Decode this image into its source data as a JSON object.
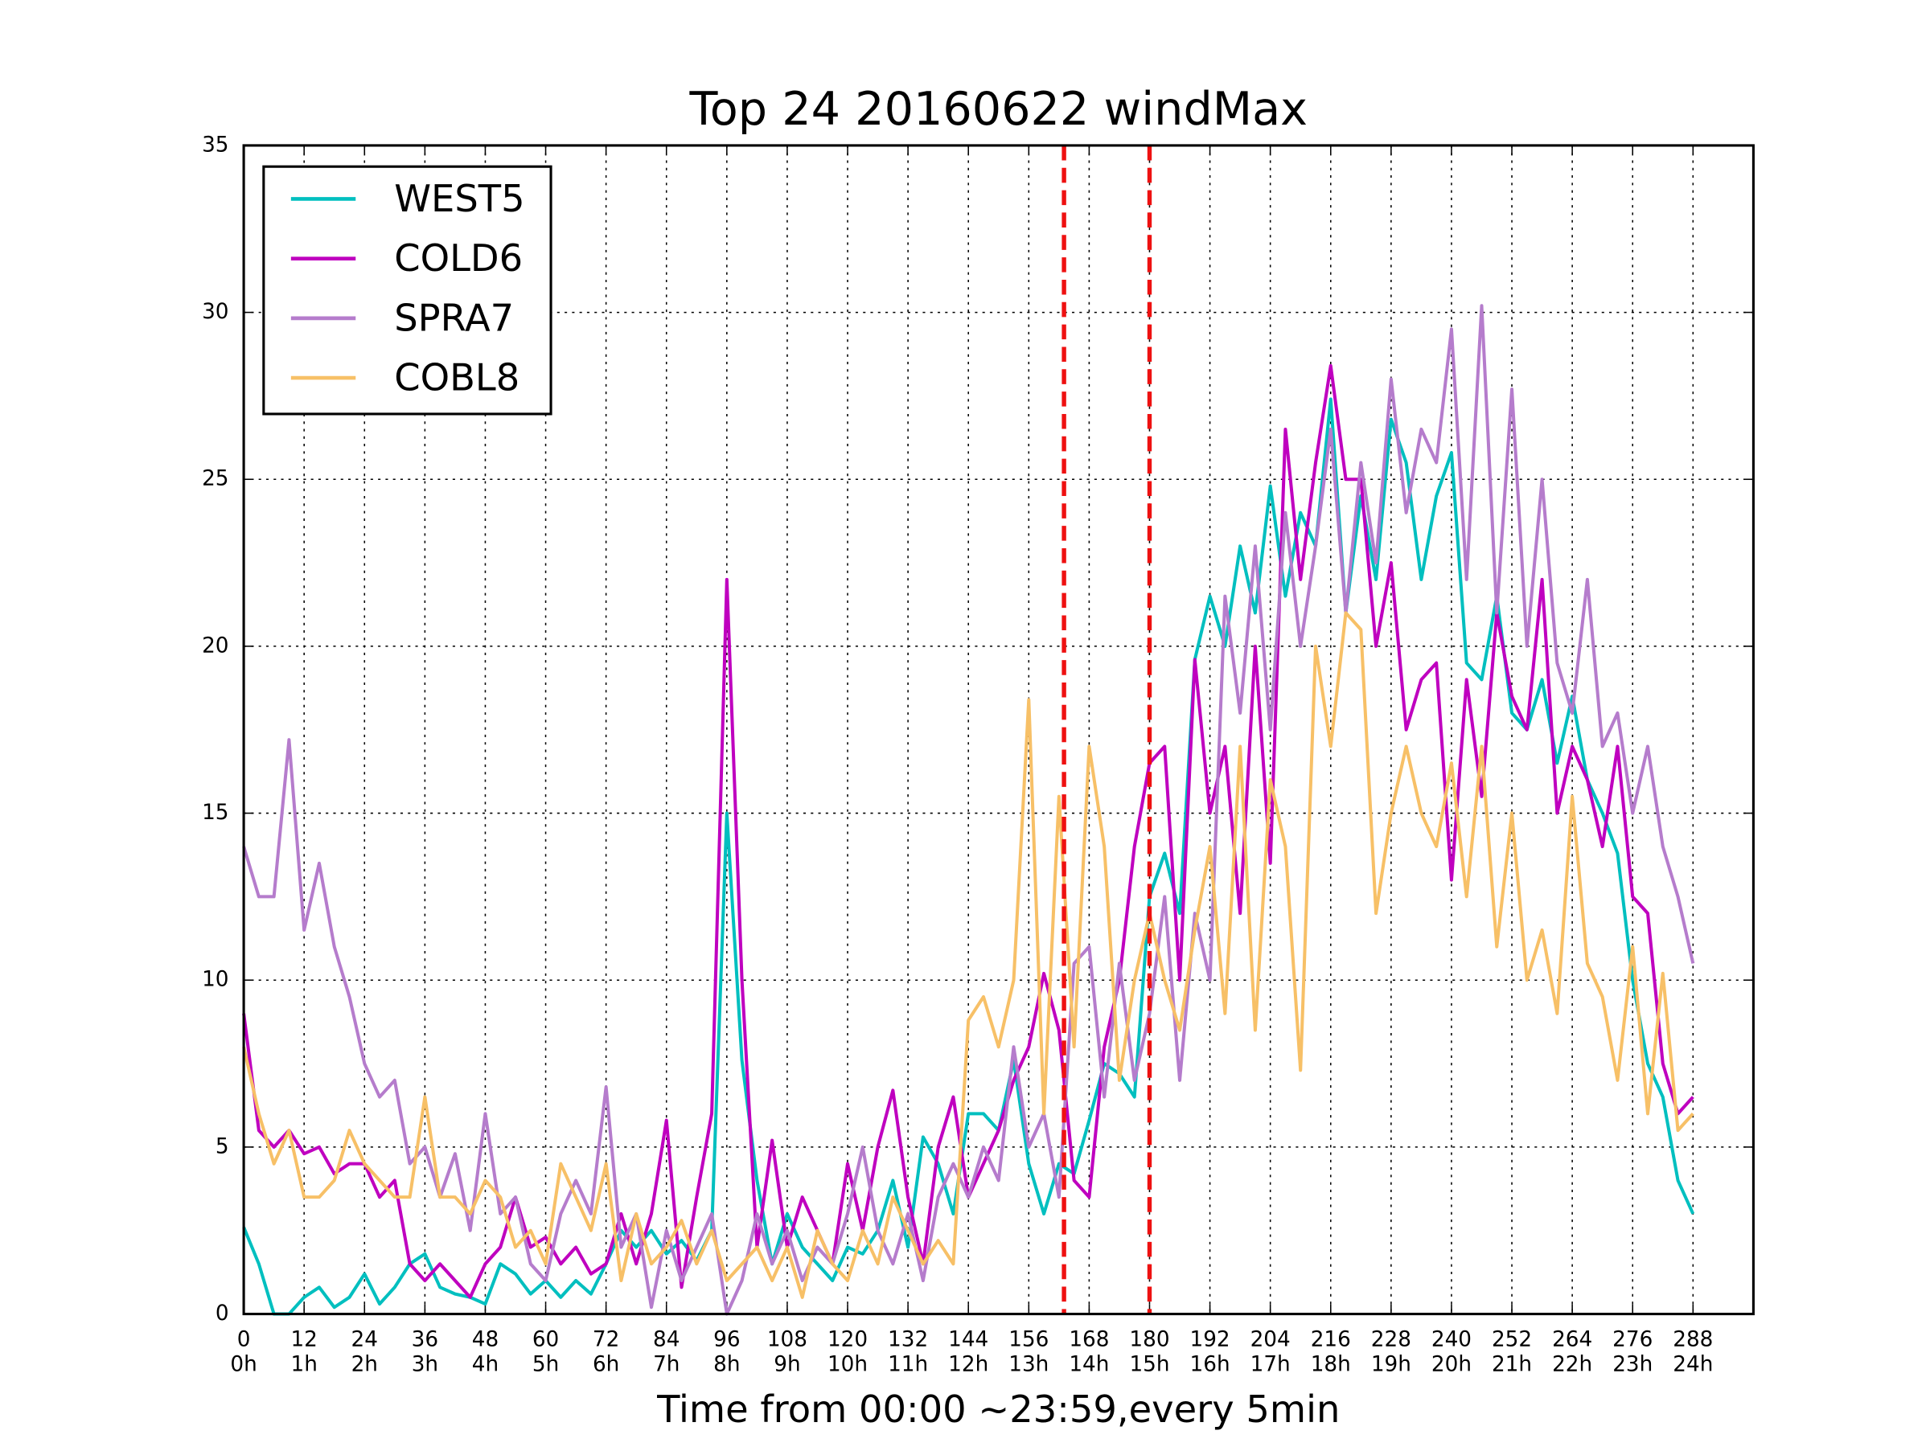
{
  "chart_data": {
    "type": "line",
    "title": "Top 24 20160622 windMax",
    "x_label": "Time from 00:00 ~23:59,every 5min",
    "x": [
      0,
      3,
      6,
      9,
      12,
      15,
      18,
      21,
      24,
      27,
      30,
      33,
      36,
      39,
      42,
      45,
      48,
      51,
      54,
      57,
      60,
      63,
      66,
      69,
      72,
      75,
      78,
      81,
      84,
      87,
      90,
      93,
      96,
      99,
      102,
      105,
      108,
      111,
      114,
      117,
      120,
      123,
      126,
      129,
      132,
      135,
      138,
      141,
      144,
      147,
      150,
      153,
      156,
      159,
      162,
      165,
      168,
      171,
      174,
      177,
      180,
      183,
      186,
      189,
      192,
      195,
      198,
      201,
      204,
      207,
      210,
      213,
      216,
      219,
      222,
      225,
      228,
      231,
      234,
      237,
      240,
      243,
      246,
      249,
      252,
      255,
      258,
      261,
      264,
      267,
      270,
      273,
      276,
      279,
      282,
      285,
      288
    ],
    "series": [
      {
        "name": "WEST5",
        "color": "#00bfbf",
        "values": [
          2.6,
          1.5,
          0,
          0,
          0.5,
          0.8,
          0.2,
          0.5,
          1.2,
          0.3,
          0.8,
          1.5,
          1.8,
          0.8,
          0.6,
          0.5,
          0.3,
          1.5,
          1.2,
          0.6,
          1.0,
          0.5,
          1.0,
          0.6,
          1.5,
          2.5,
          2.0,
          2.5,
          1.8,
          2.2,
          1.6,
          2.5,
          15.0,
          7.6,
          4.0,
          1.5,
          3.0,
          2.0,
          1.5,
          1.0,
          2.0,
          1.8,
          2.5,
          4.0,
          2.0,
          5.3,
          4.5,
          3.0,
          6.0,
          6.0,
          5.5,
          7.6,
          4.5,
          3.0,
          4.5,
          4.2,
          5.8,
          7.5,
          7.2,
          6.5,
          12.5,
          13.8,
          12.0,
          19.6,
          21.5,
          20.0,
          23.0,
          21.0,
          24.8,
          21.5,
          24.0,
          23.0,
          27.4,
          21.0,
          24.5,
          22.0,
          26.8,
          25.5,
          22.0,
          24.5,
          25.8,
          19.5,
          19.0,
          21.5,
          18.0,
          17.5,
          19.0,
          16.5,
          18.5,
          16.0,
          15.0,
          13.8,
          10.0,
          7.5,
          6.5,
          4.0,
          3.0
        ]
      },
      {
        "name": "COLD6",
        "color": "#bf00bf",
        "values": [
          9.0,
          5.5,
          5.0,
          5.5,
          4.8,
          5.0,
          4.2,
          4.5,
          4.5,
          3.5,
          4.0,
          1.5,
          1.0,
          1.5,
          1.0,
          0.5,
          1.5,
          2.0,
          3.5,
          2.0,
          2.3,
          1.5,
          2.0,
          1.2,
          1.5,
          3.0,
          1.5,
          3.0,
          5.8,
          0.8,
          3.5,
          6.0,
          22.0,
          10.0,
          2.0,
          5.2,
          2.0,
          3.5,
          2.5,
          1.5,
          4.5,
          2.5,
          5.0,
          6.7,
          3.5,
          1.5,
          5.0,
          6.5,
          3.5,
          4.5,
          5.5,
          7.0,
          8.0,
          10.2,
          8.5,
          4.0,
          3.5,
          8.0,
          10.0,
          14.0,
          16.5,
          17.0,
          10.0,
          19.6,
          15.0,
          17.0,
          12.0,
          20.0,
          13.5,
          26.5,
          22.0,
          25.5,
          28.4,
          25.0,
          25.0,
          20.0,
          22.5,
          17.5,
          19.0,
          19.5,
          13.0,
          19.0,
          15.5,
          21.0,
          18.5,
          17.5,
          22.0,
          15.0,
          17.0,
          16.0,
          14.0,
          17.0,
          12.5,
          12.0,
          7.5,
          6.0,
          6.5
        ]
      },
      {
        "name": "SPRA7",
        "color": "#b57ccc",
        "values": [
          14.0,
          12.5,
          12.5,
          17.2,
          11.5,
          13.5,
          11.0,
          9.5,
          7.5,
          6.5,
          7.0,
          4.5,
          5.0,
          3.5,
          4.8,
          2.5,
          6.0,
          3.0,
          3.5,
          1.5,
          1.0,
          3.0,
          4.0,
          3.0,
          6.8,
          2.0,
          3.0,
          0.2,
          2.5,
          1.0,
          2.0,
          3.0,
          0.0,
          1.0,
          3.0,
          1.5,
          2.5,
          1.0,
          2.0,
          1.5,
          3.0,
          5.0,
          2.5,
          1.5,
          3.0,
          1.0,
          3.5,
          4.5,
          3.5,
          5.0,
          4.0,
          8.0,
          5.0,
          6.0,
          3.5,
          10.5,
          11.0,
          6.5,
          10.5,
          7.0,
          9.0,
          12.5,
          7.0,
          12.0,
          10.0,
          21.5,
          18.0,
          23.0,
          17.5,
          24.0,
          20.0,
          23.0,
          26.5,
          21.0,
          25.5,
          22.5,
          28.0,
          24.0,
          26.5,
          25.5,
          29.5,
          22.0,
          30.2,
          21.0,
          27.7,
          20.0,
          25.0,
          19.5,
          18.0,
          22.0,
          17.0,
          18.0,
          15.0,
          17.0,
          14.0,
          12.5,
          10.5
        ]
      },
      {
        "name": "COBL8",
        "color": "#f7c067",
        "values": [
          8.0,
          6.0,
          4.5,
          5.5,
          3.5,
          3.5,
          4.0,
          5.5,
          4.5,
          4.0,
          3.5,
          3.5,
          6.5,
          3.5,
          3.5,
          3.0,
          4.0,
          3.5,
          2.0,
          2.5,
          1.5,
          4.5,
          3.5,
          2.5,
          4.5,
          1.0,
          3.0,
          1.5,
          2.0,
          2.8,
          1.5,
          2.5,
          1.0,
          1.5,
          2.0,
          1.0,
          2.0,
          0.5,
          2.5,
          1.5,
          1.0,
          2.5,
          1.5,
          3.5,
          2.5,
          1.5,
          2.2,
          1.5,
          8.8,
          9.5,
          8.0,
          10.0,
          18.4,
          6.0,
          15.5,
          8.0,
          17.0,
          14.0,
          7.0,
          10.0,
          12.0,
          10.0,
          8.5,
          11.5,
          14.0,
          9.0,
          17.0,
          8.5,
          16.0,
          14.0,
          7.3,
          20.0,
          17.0,
          21.0,
          20.5,
          12.0,
          15.0,
          17.0,
          15.0,
          14.0,
          16.5,
          12.5,
          17.0,
          11.0,
          15.0,
          10.0,
          11.5,
          9.0,
          15.5,
          10.5,
          9.5,
          7.0,
          11.0,
          6.0,
          10.2,
          5.5,
          6.0
        ]
      }
    ],
    "xlim": [
      0,
      300
    ],
    "ylim": [
      0,
      35
    ],
    "xticks": [
      0,
      12,
      24,
      36,
      48,
      60,
      72,
      84,
      96,
      108,
      120,
      132,
      144,
      156,
      168,
      180,
      192,
      204,
      216,
      228,
      240,
      252,
      264,
      276,
      288
    ],
    "x_hour_labels": [
      "0h",
      "1h",
      "2h",
      "3h",
      "4h",
      "5h",
      "6h",
      "7h",
      "8h",
      "9h",
      "10h",
      "11h",
      "12h",
      "13h",
      "14h",
      "15h",
      "16h",
      "17h",
      "18h",
      "19h",
      "20h",
      "21h",
      "22h",
      "23h",
      "24h"
    ],
    "yticks": [
      0,
      5,
      10,
      15,
      20,
      25,
      30,
      35
    ],
    "vlines": [
      163,
      180
    ],
    "vline_color": "#ee1111",
    "grid": true,
    "legend": "upper left"
  }
}
